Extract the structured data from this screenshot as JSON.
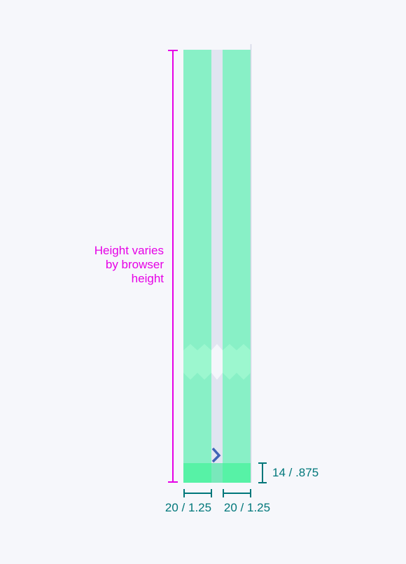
{
  "labels": {
    "height_note": [
      "Height varies",
      "by browser",
      "height"
    ],
    "footer_height": "14 / .875",
    "left_column_width": "20 / 1.25",
    "right_column_width": "20 / 1.25"
  },
  "colors": {
    "column_fill": "#88f0c6",
    "footer_fill": "#57f2a6",
    "break_fill": "#9cf7cf",
    "gutter_fill": "#e1e5f1",
    "page_background": "#f6f7fb",
    "magenta_dimension": "#e600e6",
    "teal_dimension": "#00777a",
    "chevron": "#3f63b7"
  },
  "icons": {
    "chevron": "chevron-right-icon"
  }
}
